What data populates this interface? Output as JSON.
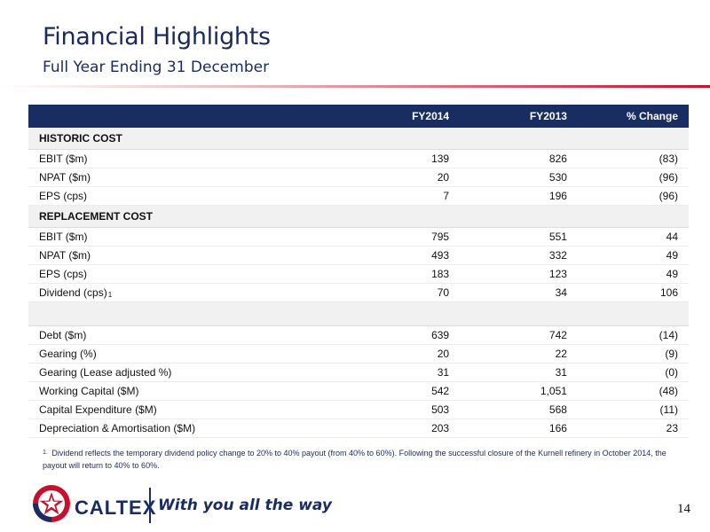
{
  "header": {
    "title": "Financial Highlights",
    "subtitle": "Full Year Ending 31 December"
  },
  "table": {
    "columns": [
      "",
      "FY2014",
      "FY2013",
      "% Change"
    ],
    "sections": [
      {
        "label": "HISTORIC COST",
        "rows": [
          {
            "label": "EBIT ($m)",
            "fy2014": "139",
            "fy2013": "826",
            "change": "(83)"
          },
          {
            "label": "NPAT ($m)",
            "fy2014": "20",
            "fy2013": "530",
            "change": "(96)"
          },
          {
            "label": "EPS (cps)",
            "fy2014": "7",
            "fy2013": "196",
            "change": "(96)"
          }
        ]
      },
      {
        "label": "REPLACEMENT COST",
        "rows": [
          {
            "label": "EBIT ($m)",
            "fy2014": "795",
            "fy2013": "551",
            "change": "44"
          },
          {
            "label": "NPAT ($m)",
            "fy2014": "493",
            "fy2013": "332",
            "change": "49"
          },
          {
            "label": "EPS (cps)",
            "fy2014": "183",
            "fy2013": "123",
            "change": "49"
          },
          {
            "label": "Dividend (cps)",
            "footnote_ref": "1",
            "fy2014": "70",
            "fy2013": "34",
            "change": "106"
          }
        ]
      },
      {
        "label": "",
        "rows": [
          {
            "label": "Debt ($m)",
            "fy2014": "639",
            "fy2013": "742",
            "change": "(14)"
          },
          {
            "label": "Gearing (%)",
            "fy2014": "20",
            "fy2013": "22",
            "change": "(9)"
          },
          {
            "label": "Gearing (Lease adjusted %)",
            "fy2014": "31",
            "fy2013": "31",
            "change": "(0)"
          },
          {
            "label": "Working Capital ($M)",
            "fy2014": "542",
            "fy2013": "1,051",
            "change": "(48)"
          },
          {
            "label": "Capital Expenditure ($M)",
            "fy2014": "503",
            "fy2013": "568",
            "change": "(11)"
          },
          {
            "label": "Depreciation & Amortisation ($M)",
            "fy2014": "203",
            "fy2013": "166",
            "change": "23"
          }
        ]
      }
    ]
  },
  "footnote": {
    "mark": "1.",
    "text": "Dividend reflects the temporary dividend policy change to 20% to 40% payout (from 40% to 60%). Following the successful closure of the Kurnell refinery in October 2014, the payout will return to 40% to 60%."
  },
  "footer": {
    "brand": "CALTEX",
    "tagline": "With you all the way",
    "page_number": "14"
  },
  "colors": {
    "navy": "#1a2d62",
    "red": "#c8102e",
    "section_bg": "#f1f1f1"
  }
}
